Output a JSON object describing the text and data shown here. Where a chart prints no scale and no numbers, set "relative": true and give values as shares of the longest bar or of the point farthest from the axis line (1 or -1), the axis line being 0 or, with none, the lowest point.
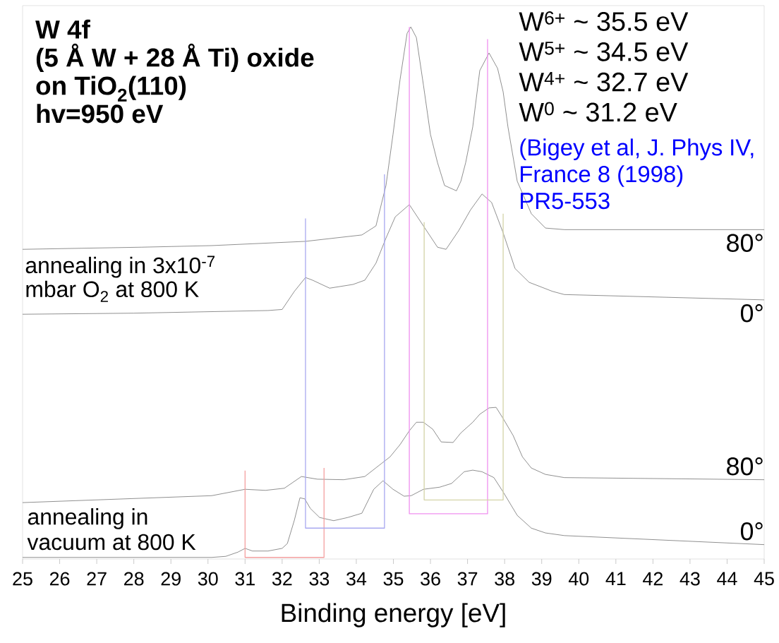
{
  "chart_data": {
    "type": "line",
    "relative": true,
    "title": "W 4f",
    "xlabel": "Binding energy [eV]",
    "xlim": [
      25,
      45
    ],
    "xticks": [
      25,
      26,
      27,
      28,
      29,
      30,
      31,
      32,
      33,
      34,
      35,
      36,
      37,
      38,
      39,
      40,
      41,
      42,
      43,
      44,
      45
    ],
    "annotations": [
      "(5 Å W + 28 Å Ti) oxide",
      "on TiO$_{2}$(110)",
      "hv=950 eV",
      "W$^{6+}$ ~ 35.5 eV",
      "W$^{5+}$ ~ 34.5 eV",
      "W$^{4+}$ ~ 32.7 eV",
      "W$^{0}$  ~ 31.2 eV",
      "(Bigey et al, J. Phys IV, France 8 (1998) PR5-553",
      "annealing in 3x10$^{-7}$ mbar O$_{2}$ at 800 K",
      "annealing in vacuum at 800 K"
    ],
    "series": [
      {
        "name": "80°",
        "color": "#606060",
        "x": [
          25.0,
          28.2,
          30.1,
          32.63,
          34.15,
          34.53,
          34.8,
          34.99,
          35.18,
          35.37,
          35.47,
          35.62,
          35.81,
          36.0,
          36.19,
          36.38,
          36.7,
          36.82,
          36.95,
          37.14,
          37.33,
          37.58,
          37.81,
          37.96,
          38.09,
          38.34,
          38.72,
          39.1,
          39.61,
          45.0
        ],
        "values": [
          0.582,
          0.586,
          0.589,
          0.597,
          0.609,
          0.626,
          0.702,
          0.798,
          0.901,
          0.988,
          1.0,
          0.98,
          0.891,
          0.798,
          0.745,
          0.702,
          0.692,
          0.71,
          0.745,
          0.812,
          0.918,
          0.951,
          0.922,
          0.878,
          0.812,
          0.71,
          0.649,
          0.622,
          0.619,
          0.619
        ]
      },
      {
        "name": "0°",
        "color": "#606060",
        "x": [
          25.0,
          28.0,
          31.62,
          32.0,
          32.33,
          32.63,
          32.82,
          33.28,
          33.91,
          34.23,
          34.53,
          34.8,
          35.05,
          35.43,
          35.81,
          36.19,
          36.42,
          36.76,
          37.08,
          37.39,
          37.65,
          37.96,
          38.28,
          38.66,
          39.29,
          39.61,
          45.0
        ],
        "values": [
          0.46,
          0.462,
          0.467,
          0.469,
          0.503,
          0.529,
          0.524,
          0.509,
          0.516,
          0.524,
          0.556,
          0.603,
          0.643,
          0.666,
          0.626,
          0.586,
          0.582,
          0.617,
          0.656,
          0.686,
          0.67,
          0.613,
          0.546,
          0.52,
          0.503,
          0.497,
          0.487
        ]
      },
      {
        "name": "80°",
        "color": "#606060",
        "x": [
          25.0,
          30.1,
          31.0,
          31.55,
          32.06,
          32.52,
          32.95,
          33.66,
          34.23,
          34.67,
          34.91,
          35.18,
          35.43,
          35.62,
          35.81,
          36.06,
          36.29,
          36.61,
          36.82,
          37.14,
          37.33,
          37.58,
          37.77,
          37.96,
          38.23,
          38.48,
          38.72,
          39.1,
          39.61,
          45.0
        ],
        "values": [
          0.106,
          0.119,
          0.131,
          0.129,
          0.133,
          0.155,
          0.15,
          0.149,
          0.155,
          0.179,
          0.192,
          0.215,
          0.241,
          0.257,
          0.257,
          0.244,
          0.22,
          0.219,
          0.237,
          0.257,
          0.272,
          0.284,
          0.285,
          0.264,
          0.232,
          0.192,
          0.171,
          0.159,
          0.153,
          0.149
        ]
      },
      {
        "name": "0°",
        "color": "#606060",
        "x": [
          25.0,
          29.15,
          30.1,
          30.48,
          30.81,
          31.0,
          31.2,
          31.62,
          32.0,
          32.14,
          32.33,
          32.48,
          32.61,
          32.76,
          33.01,
          33.39,
          33.77,
          34.15,
          34.47,
          34.72,
          34.99,
          35.29,
          35.48,
          35.81,
          36.25,
          36.57,
          36.91,
          37.14,
          37.39,
          37.71,
          37.96,
          38.34,
          38.72,
          39.1,
          39.61,
          45.0
        ],
        "values": [
          0.003,
          0.003,
          0.003,
          0.005,
          0.013,
          0.02,
          0.015,
          0.015,
          0.02,
          0.029,
          0.073,
          0.115,
          0.113,
          0.095,
          0.078,
          0.072,
          0.078,
          0.086,
          0.131,
          0.147,
          0.131,
          0.118,
          0.119,
          0.131,
          0.135,
          0.142,
          0.164,
          0.167,
          0.164,
          0.153,
          0.126,
          0.082,
          0.058,
          0.049,
          0.044,
          0.027
        ]
      },
      {
        "color": "#f4a0a0",
        "x": [
          31.0,
          31.0,
          33.13,
          33.13
        ],
        "values": [
          0.166,
          0.003,
          0.003,
          0.171
        ]
      },
      {
        "color": "#a8a8f0",
        "x": [
          32.63,
          32.63,
          34.76,
          34.76
        ],
        "values": [
          0.64,
          0.058,
          0.058,
          0.723
        ]
      },
      {
        "color": "#f090f0",
        "x": [
          35.43,
          35.43,
          37.54,
          37.54
        ],
        "values": [
          1.0,
          0.085,
          0.085,
          0.977
        ]
      },
      {
        "color": "#d4d4a8",
        "x": [
          35.83,
          35.83,
          37.96,
          37.96
        ],
        "values": [
          0.633,
          0.111,
          0.111,
          0.649
        ]
      }
    ]
  }
}
